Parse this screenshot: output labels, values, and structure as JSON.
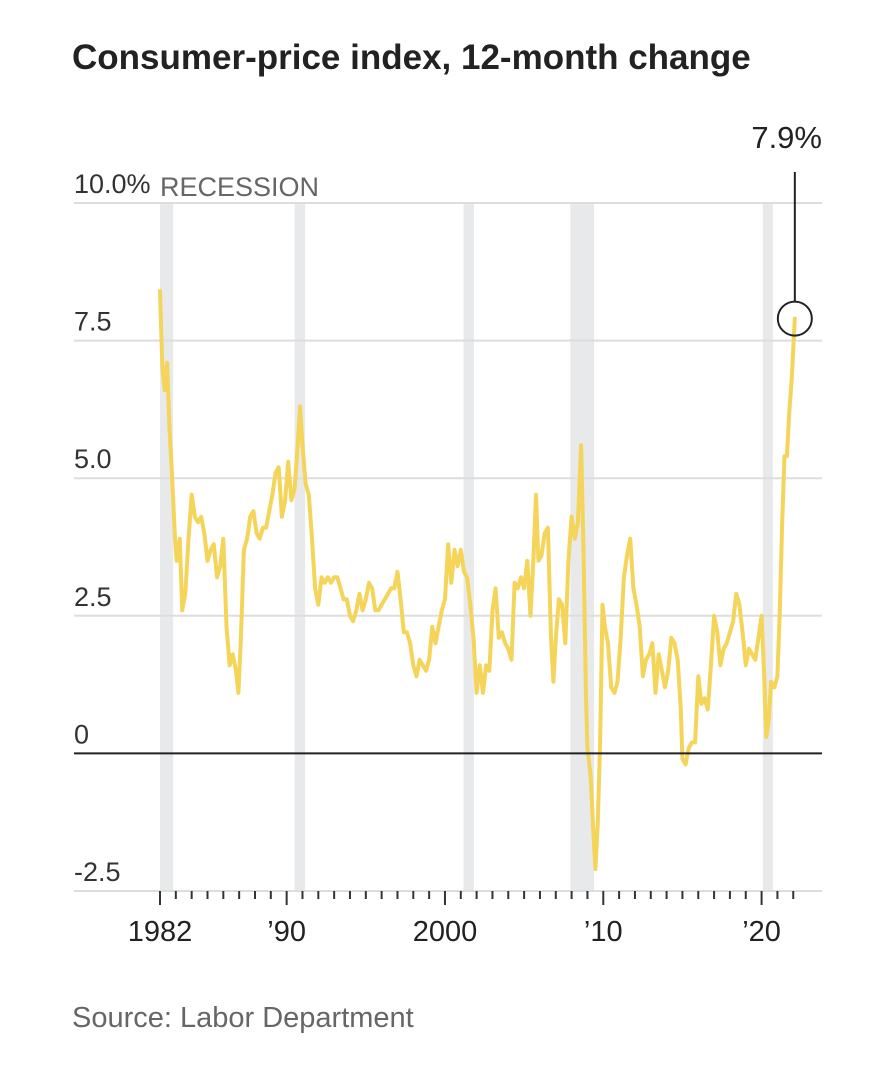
{
  "title": "Consumer-price index, 12-month change",
  "source": "Source: Labor Department",
  "colors": {
    "line": "#f5d45a",
    "recession": "#e8e9eb",
    "grid": "#dddddd",
    "zero": "#222222",
    "text": "#222222"
  },
  "chart_data": {
    "type": "line",
    "title": "Consumer-price index, 12-month change",
    "xlabel": "",
    "ylabel": "",
    "xlim": [
      1982.0,
      2022.3
    ],
    "ylim": [
      -2.5,
      10.0
    ],
    "y_ticks": [
      {
        "value": 10.0,
        "label": "10.0%"
      },
      {
        "value": 7.5,
        "label": "7.5"
      },
      {
        "value": 5.0,
        "label": "5.0"
      },
      {
        "value": 2.5,
        "label": "2.5"
      },
      {
        "value": 0,
        "label": "0"
      },
      {
        "value": -2.5,
        "label": "-2.5"
      }
    ],
    "x_ticks": [
      {
        "value": 1982,
        "label": "1982"
      },
      {
        "value": 1990,
        "label": "’90"
      },
      {
        "value": 2000,
        "label": "2000"
      },
      {
        "value": 2010,
        "label": "’10"
      },
      {
        "value": 2020,
        "label": "’20"
      }
    ],
    "recession_label": "RECESSION",
    "recessions": [
      [
        1982.0,
        1982.83
      ],
      [
        1990.5,
        1991.17
      ],
      [
        2001.17,
        2001.83
      ],
      [
        2007.92,
        2009.42
      ],
      [
        2020.08,
        2020.25
      ]
    ],
    "annotation": {
      "label": "7.9%",
      "x": 2022.1,
      "y": 7.9
    },
    "series": [
      {
        "points": [
          [
            1982.0,
            8.4
          ],
          [
            1982.15,
            7.0
          ],
          [
            1982.3,
            6.6
          ],
          [
            1982.45,
            7.1
          ],
          [
            1982.6,
            5.9
          ],
          [
            1982.75,
            5.1
          ],
          [
            1982.95,
            3.9
          ],
          [
            1983.05,
            3.5
          ],
          [
            1983.25,
            3.9
          ],
          [
            1983.4,
            2.6
          ],
          [
            1983.6,
            2.9
          ],
          [
            1983.8,
            3.9
          ],
          [
            1984.0,
            4.7
          ],
          [
            1984.2,
            4.3
          ],
          [
            1984.4,
            4.2
          ],
          [
            1984.6,
            4.3
          ],
          [
            1984.8,
            4.0
          ],
          [
            1985.0,
            3.5
          ],
          [
            1985.2,
            3.7
          ],
          [
            1985.4,
            3.8
          ],
          [
            1985.6,
            3.2
          ],
          [
            1985.8,
            3.4
          ],
          [
            1986.0,
            3.9
          ],
          [
            1986.2,
            2.3
          ],
          [
            1986.4,
            1.6
          ],
          [
            1986.6,
            1.8
          ],
          [
            1986.8,
            1.5
          ],
          [
            1986.95,
            1.1
          ],
          [
            1987.1,
            2.0
          ],
          [
            1987.3,
            3.7
          ],
          [
            1987.5,
            3.9
          ],
          [
            1987.7,
            4.3
          ],
          [
            1987.9,
            4.4
          ],
          [
            1988.1,
            4.0
          ],
          [
            1988.3,
            3.9
          ],
          [
            1988.5,
            4.1
          ],
          [
            1988.7,
            4.1
          ],
          [
            1988.9,
            4.4
          ],
          [
            1989.1,
            4.7
          ],
          [
            1989.3,
            5.1
          ],
          [
            1989.5,
            5.2
          ],
          [
            1989.7,
            4.3
          ],
          [
            1989.9,
            4.6
          ],
          [
            1990.1,
            5.3
          ],
          [
            1990.3,
            4.6
          ],
          [
            1990.5,
            4.8
          ],
          [
            1990.7,
            5.6
          ],
          [
            1990.85,
            6.3
          ],
          [
            1991.0,
            5.6
          ],
          [
            1991.2,
            4.9
          ],
          [
            1991.4,
            4.7
          ],
          [
            1991.6,
            3.9
          ],
          [
            1991.8,
            3.0
          ],
          [
            1992.0,
            2.7
          ],
          [
            1992.2,
            3.2
          ],
          [
            1992.4,
            3.1
          ],
          [
            1992.6,
            3.2
          ],
          [
            1992.8,
            3.1
          ],
          [
            1993.0,
            3.2
          ],
          [
            1993.2,
            3.2
          ],
          [
            1993.4,
            3.0
          ],
          [
            1993.6,
            2.8
          ],
          [
            1993.8,
            2.8
          ],
          [
            1994.0,
            2.5
          ],
          [
            1994.2,
            2.4
          ],
          [
            1994.4,
            2.6
          ],
          [
            1994.6,
            2.9
          ],
          [
            1994.8,
            2.6
          ],
          [
            1995.0,
            2.8
          ],
          [
            1995.2,
            3.1
          ],
          [
            1995.4,
            3.0
          ],
          [
            1995.6,
            2.6
          ],
          [
            1995.8,
            2.6
          ],
          [
            1996.0,
            2.7
          ],
          [
            1996.2,
            2.8
          ],
          [
            1996.4,
            2.9
          ],
          [
            1996.6,
            3.0
          ],
          [
            1996.8,
            3.0
          ],
          [
            1997.0,
            3.3
          ],
          [
            1997.2,
            2.8
          ],
          [
            1997.4,
            2.2
          ],
          [
            1997.6,
            2.2
          ],
          [
            1997.8,
            2.0
          ],
          [
            1998.0,
            1.6
          ],
          [
            1998.2,
            1.4
          ],
          [
            1998.4,
            1.7
          ],
          [
            1998.6,
            1.6
          ],
          [
            1998.8,
            1.5
          ],
          [
            1999.0,
            1.7
          ],
          [
            1999.2,
            2.3
          ],
          [
            1999.4,
            2.0
          ],
          [
            1999.6,
            2.3
          ],
          [
            1999.8,
            2.6
          ],
          [
            2000.0,
            2.8
          ],
          [
            2000.2,
            3.8
          ],
          [
            2000.4,
            3.1
          ],
          [
            2000.6,
            3.7
          ],
          [
            2000.8,
            3.4
          ],
          [
            2001.0,
            3.7
          ],
          [
            2001.2,
            3.3
          ],
          [
            2001.4,
            3.2
          ],
          [
            2001.6,
            2.7
          ],
          [
            2001.8,
            2.1
          ],
          [
            2002.0,
            1.1
          ],
          [
            2002.2,
            1.6
          ],
          [
            2002.4,
            1.1
          ],
          [
            2002.6,
            1.6
          ],
          [
            2002.8,
            1.5
          ],
          [
            2003.0,
            2.6
          ],
          [
            2003.2,
            3.0
          ],
          [
            2003.4,
            2.1
          ],
          [
            2003.6,
            2.2
          ],
          [
            2003.8,
            2.0
          ],
          [
            2004.0,
            1.9
          ],
          [
            2004.2,
            1.7
          ],
          [
            2004.4,
            3.1
          ],
          [
            2004.6,
            3.0
          ],
          [
            2004.8,
            3.2
          ],
          [
            2005.0,
            3.0
          ],
          [
            2005.2,
            3.5
          ],
          [
            2005.4,
            2.5
          ],
          [
            2005.6,
            3.6
          ],
          [
            2005.75,
            4.7
          ],
          [
            2005.9,
            3.5
          ],
          [
            2006.1,
            3.6
          ],
          [
            2006.3,
            4.0
          ],
          [
            2006.5,
            4.1
          ],
          [
            2006.7,
            2.1
          ],
          [
            2006.85,
            1.3
          ],
          [
            2007.0,
            2.1
          ],
          [
            2007.2,
            2.8
          ],
          [
            2007.4,
            2.7
          ],
          [
            2007.6,
            2.0
          ],
          [
            2007.8,
            3.5
          ],
          [
            2008.0,
            4.3
          ],
          [
            2008.2,
            3.9
          ],
          [
            2008.4,
            4.2
          ],
          [
            2008.6,
            5.6
          ],
          [
            2008.75,
            3.7
          ],
          [
            2008.9,
            1.1
          ],
          [
            2009.0,
            0.1
          ],
          [
            2009.2,
            -0.4
          ],
          [
            2009.35,
            -1.3
          ],
          [
            2009.5,
            -2.1
          ],
          [
            2009.65,
            -1.3
          ],
          [
            2009.8,
            0.2
          ],
          [
            2009.95,
            2.7
          ],
          [
            2010.1,
            2.3
          ],
          [
            2010.3,
            2.0
          ],
          [
            2010.5,
            1.2
          ],
          [
            2010.7,
            1.1
          ],
          [
            2010.9,
            1.3
          ],
          [
            2011.1,
            2.1
          ],
          [
            2011.3,
            3.2
          ],
          [
            2011.5,
            3.6
          ],
          [
            2011.7,
            3.9
          ],
          [
            2011.9,
            3.0
          ],
          [
            2012.1,
            2.7
          ],
          [
            2012.3,
            2.3
          ],
          [
            2012.5,
            1.4
          ],
          [
            2012.7,
            1.7
          ],
          [
            2012.9,
            1.8
          ],
          [
            2013.1,
            2.0
          ],
          [
            2013.3,
            1.1
          ],
          [
            2013.5,
            1.8
          ],
          [
            2013.7,
            1.5
          ],
          [
            2013.9,
            1.2
          ],
          [
            2014.1,
            1.5
          ],
          [
            2014.3,
            2.1
          ],
          [
            2014.5,
            2.0
          ],
          [
            2014.7,
            1.7
          ],
          [
            2014.9,
            0.8
          ],
          [
            2015.0,
            -0.1
          ],
          [
            2015.2,
            -0.2
          ],
          [
            2015.4,
            0.1
          ],
          [
            2015.6,
            0.2
          ],
          [
            2015.8,
            0.2
          ],
          [
            2016.0,
            1.4
          ],
          [
            2016.2,
            0.9
          ],
          [
            2016.4,
            1.0
          ],
          [
            2016.6,
            0.8
          ],
          [
            2016.8,
            1.6
          ],
          [
            2017.0,
            2.5
          ],
          [
            2017.2,
            2.2
          ],
          [
            2017.4,
            1.6
          ],
          [
            2017.6,
            1.9
          ],
          [
            2017.8,
            2.0
          ],
          [
            2018.0,
            2.2
          ],
          [
            2018.2,
            2.4
          ],
          [
            2018.4,
            2.9
          ],
          [
            2018.6,
            2.7
          ],
          [
            2018.8,
            2.2
          ],
          [
            2019.0,
            1.6
          ],
          [
            2019.2,
            1.9
          ],
          [
            2019.4,
            1.8
          ],
          [
            2019.6,
            1.7
          ],
          [
            2019.8,
            2.1
          ],
          [
            2020.0,
            2.5
          ],
          [
            2020.15,
            1.5
          ],
          [
            2020.3,
            0.3
          ],
          [
            2020.45,
            0.6
          ],
          [
            2020.6,
            1.3
          ],
          [
            2020.8,
            1.2
          ],
          [
            2021.0,
            1.4
          ],
          [
            2021.15,
            2.6
          ],
          [
            2021.3,
            4.2
          ],
          [
            2021.45,
            5.4
          ],
          [
            2021.6,
            5.4
          ],
          [
            2021.75,
            6.2
          ],
          [
            2021.9,
            6.8
          ],
          [
            2022.1,
            7.9
          ]
        ]
      }
    ]
  }
}
